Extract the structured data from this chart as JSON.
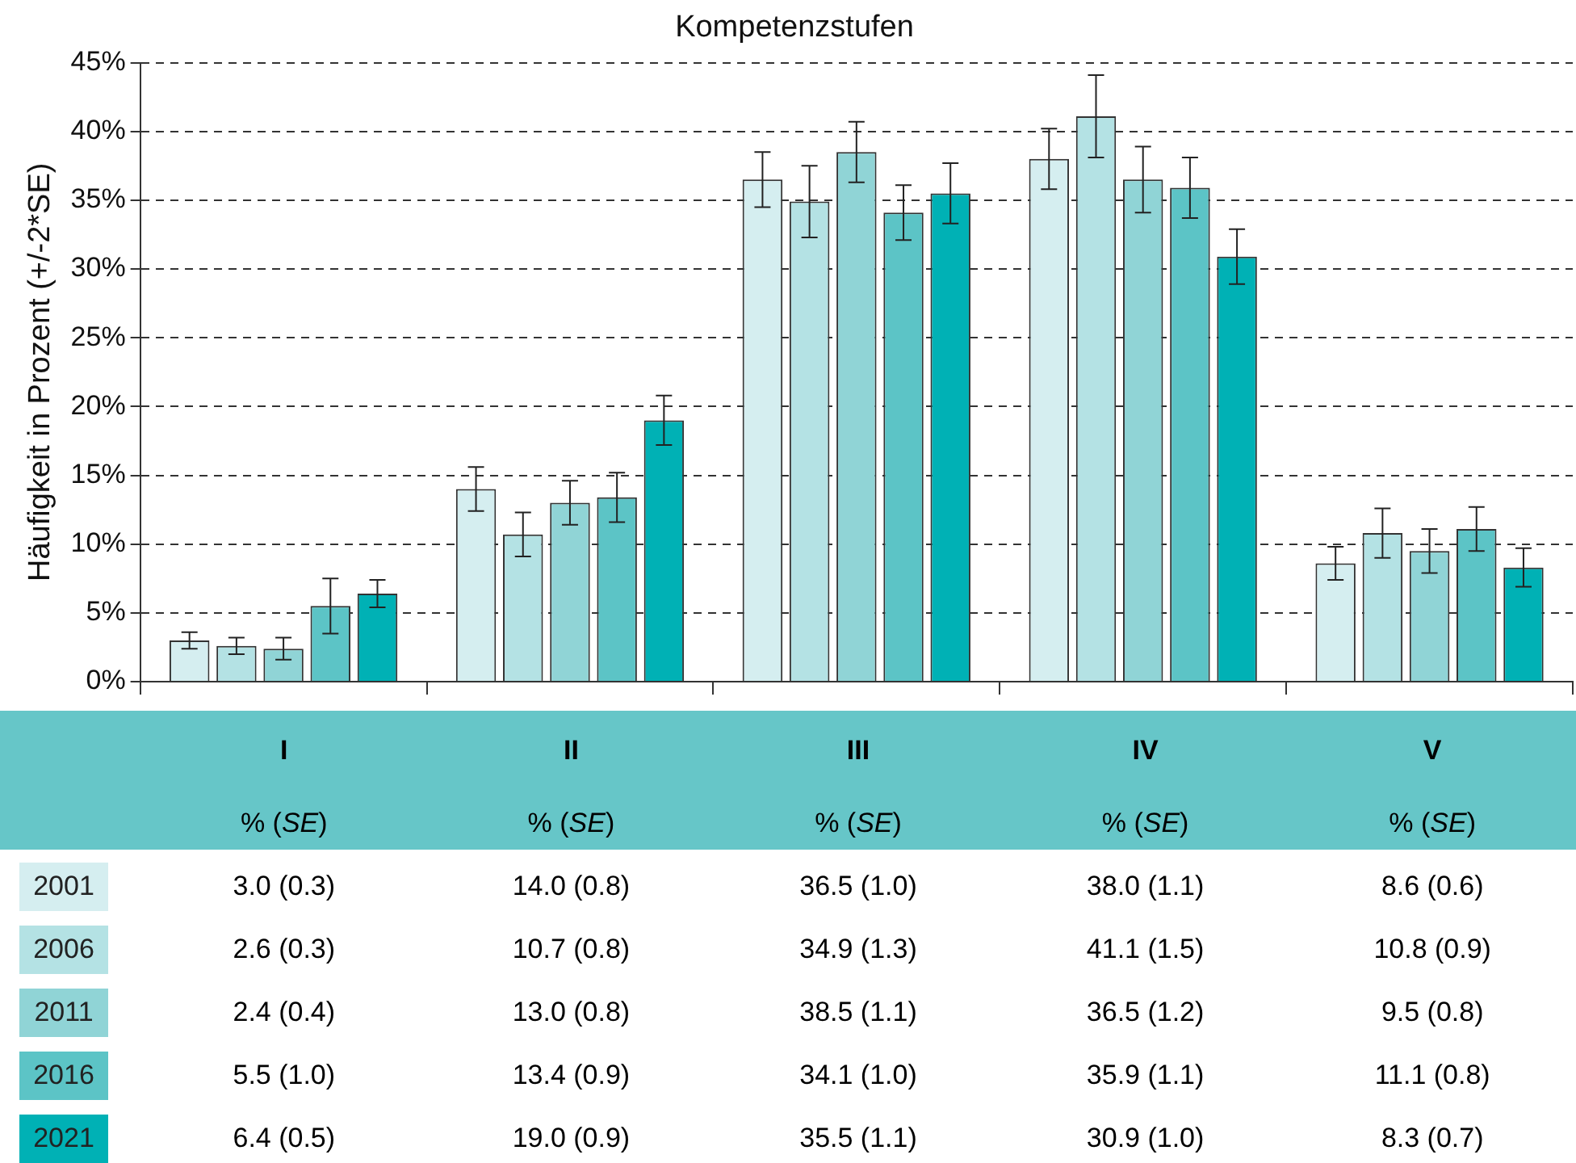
{
  "chart_data": {
    "type": "bar",
    "title": "Kompetenzstufen",
    "ylabel": "Häufigkeit in Prozent (+/-2*SE)",
    "categories": [
      "I",
      "II",
      "III",
      "IV",
      "V"
    ],
    "series": [
      {
        "name": "2001",
        "color": "#d5eef0",
        "values": [
          3.0,
          14.0,
          36.5,
          38.0,
          8.6
        ],
        "errors": [
          0.6,
          1.6,
          2.0,
          2.2,
          1.2
        ],
        "value_labels": [
          "3.0 (0.3)",
          "14.0 (0.8)",
          "36.5 (1.0)",
          "38.0 (1.1)",
          "8.6 (0.6)"
        ]
      },
      {
        "name": "2006",
        "color": "#b4e2e4",
        "values": [
          2.6,
          10.7,
          34.9,
          41.1,
          10.8
        ],
        "errors": [
          0.6,
          1.6,
          2.6,
          3.0,
          1.8
        ],
        "value_labels": [
          "2.6 (0.3)",
          "10.7 (0.8)",
          "34.9 (1.3)",
          "41.1 (1.5)",
          "10.8 (0.9)"
        ]
      },
      {
        "name": "2011",
        "color": "#90d4d6",
        "values": [
          2.4,
          13.0,
          38.5,
          36.5,
          9.5
        ],
        "errors": [
          0.8,
          1.6,
          2.2,
          2.4,
          1.6
        ],
        "value_labels": [
          "2.4 (0.4)",
          "13.0 (0.8)",
          "38.5 (1.1)",
          "36.5 (1.2)",
          "9.5 (0.8)"
        ]
      },
      {
        "name": "2016",
        "color": "#5cc4c6",
        "values": [
          5.5,
          13.4,
          34.1,
          35.9,
          11.1
        ],
        "errors": [
          2.0,
          1.8,
          2.0,
          2.2,
          1.6
        ],
        "value_labels": [
          "5.5 (1.0)",
          "13.4 (0.9)",
          "34.1 (1.0)",
          "35.9 (1.1)",
          "11.1 (0.8)"
        ]
      },
      {
        "name": "2021",
        "color": "#00b1b5",
        "values": [
          6.4,
          19.0,
          35.5,
          30.9,
          8.3
        ],
        "errors": [
          1.0,
          1.8,
          2.2,
          2.0,
          1.4
        ],
        "value_labels": [
          "6.4 (0.5)",
          "19.0 (0.9)",
          "35.5 (1.1)",
          "30.9 (1.0)",
          "8.3 (0.7)"
        ]
      }
    ],
    "ylim": [
      0,
      45
    ],
    "yticks": [
      {
        "value": 0,
        "label": "0%"
      },
      {
        "value": 5,
        "label": "5%"
      },
      {
        "value": 10,
        "label": "10%"
      },
      {
        "value": 15,
        "label": "15%"
      },
      {
        "value": 20,
        "label": "20%"
      },
      {
        "value": 25,
        "label": "25%"
      },
      {
        "value": 30,
        "label": "30%"
      },
      {
        "value": 35,
        "label": "35%"
      },
      {
        "value": 40,
        "label": "40%"
      },
      {
        "value": 45,
        "label": "45%"
      }
    ],
    "annotations": [
      "% (SE)"
    ],
    "grid": "y",
    "legend": "bottom",
    "tick_labels": "y"
  }
}
